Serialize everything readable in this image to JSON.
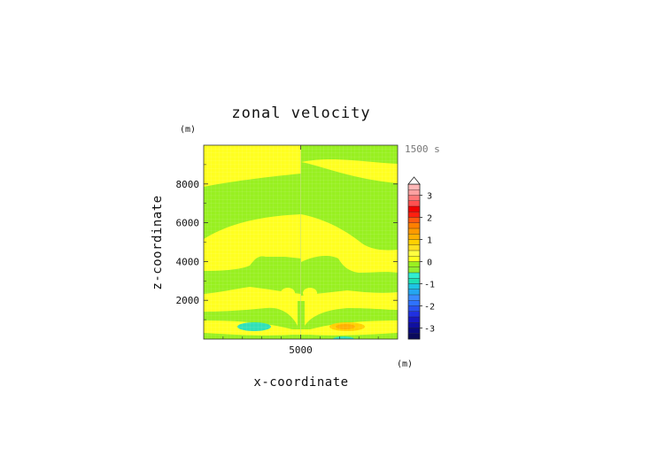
{
  "chart_data": {
    "type": "heatmap",
    "title": "zonal velocity",
    "xlabel": "x-coordinate",
    "ylabel": "z-coordinate",
    "x_unit": "(m)",
    "y_unit": "(m)",
    "time_label": "1500 s",
    "xlim": [
      0,
      10000
    ],
    "ylim": [
      0,
      10000
    ],
    "x_ticks": [
      5000
    ],
    "y_ticks": [
      2000,
      4000,
      6000,
      8000
    ],
    "colorbar": {
      "levels": [
        -3.5,
        -3.25,
        -3,
        -2.75,
        -2.5,
        -2.25,
        -2,
        -1.75,
        -1.5,
        -1.25,
        -1,
        -0.75,
        -0.5,
        -0.25,
        0,
        0.25,
        0.5,
        0.75,
        1,
        1.25,
        1.5,
        1.75,
        2,
        2.25,
        2.5,
        2.75,
        3,
        3.25,
        3.5
      ],
      "colors": [
        "#0a0a5c",
        "#0b0b7e",
        "#1010a0",
        "#1818c0",
        "#2030e0",
        "#2850f0",
        "#2e72ff",
        "#3a8cff",
        "#24a6f0",
        "#1ec4e4",
        "#1ee0b4",
        "#30eed0",
        "#90ee30",
        "#9af020",
        "#ffff20",
        "#ffff40",
        "#ffe020",
        "#ffd000",
        "#ffb000",
        "#ff9a00",
        "#ff8000",
        "#ff5a10",
        "#ff2010",
        "#f00000",
        "#ff5050",
        "#ff7878",
        "#ffa0a0",
        "#ffb8b8"
      ],
      "tick_labels": [
        "3",
        "2",
        "1",
        "0",
        "-1",
        "-2",
        "-3"
      ],
      "tick_values": [
        3,
        2,
        1,
        0,
        -1,
        -2,
        -3
      ],
      "extend_max": true
    }
  }
}
